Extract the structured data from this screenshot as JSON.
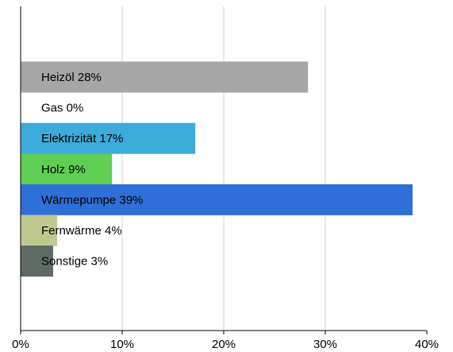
{
  "chart_data": {
    "type": "bar",
    "orientation": "horizontal",
    "categories": [
      "Heizöl",
      "Gas",
      "Elektrizität",
      "Holz",
      "Wärmepumpe",
      "Fernwärme",
      "Sonstige"
    ],
    "values": [
      28.3,
      0,
      17.2,
      9.0,
      38.6,
      3.6,
      3.2
    ],
    "labels": [
      "Heizöl 28%",
      "Gas 0%",
      "Elektrizität 17%",
      "Holz 9%",
      "Wärmepumpe 39%",
      "Fernwärme 4%",
      "Sonstige 3%"
    ],
    "colors": [
      "#a6a6a6",
      "#ffffff",
      "#3dabd9",
      "#5ecf52",
      "#2e6fd8",
      "#bfc98e",
      "#5e6b63"
    ],
    "xlim": [
      0,
      40
    ],
    "xticks": [
      0,
      10,
      20,
      30,
      40
    ],
    "xtick_labels": [
      "0%",
      "10%",
      "20%",
      "30%",
      "40%"
    ],
    "grid": true,
    "title": "",
    "xlabel": "",
    "ylabel": ""
  }
}
